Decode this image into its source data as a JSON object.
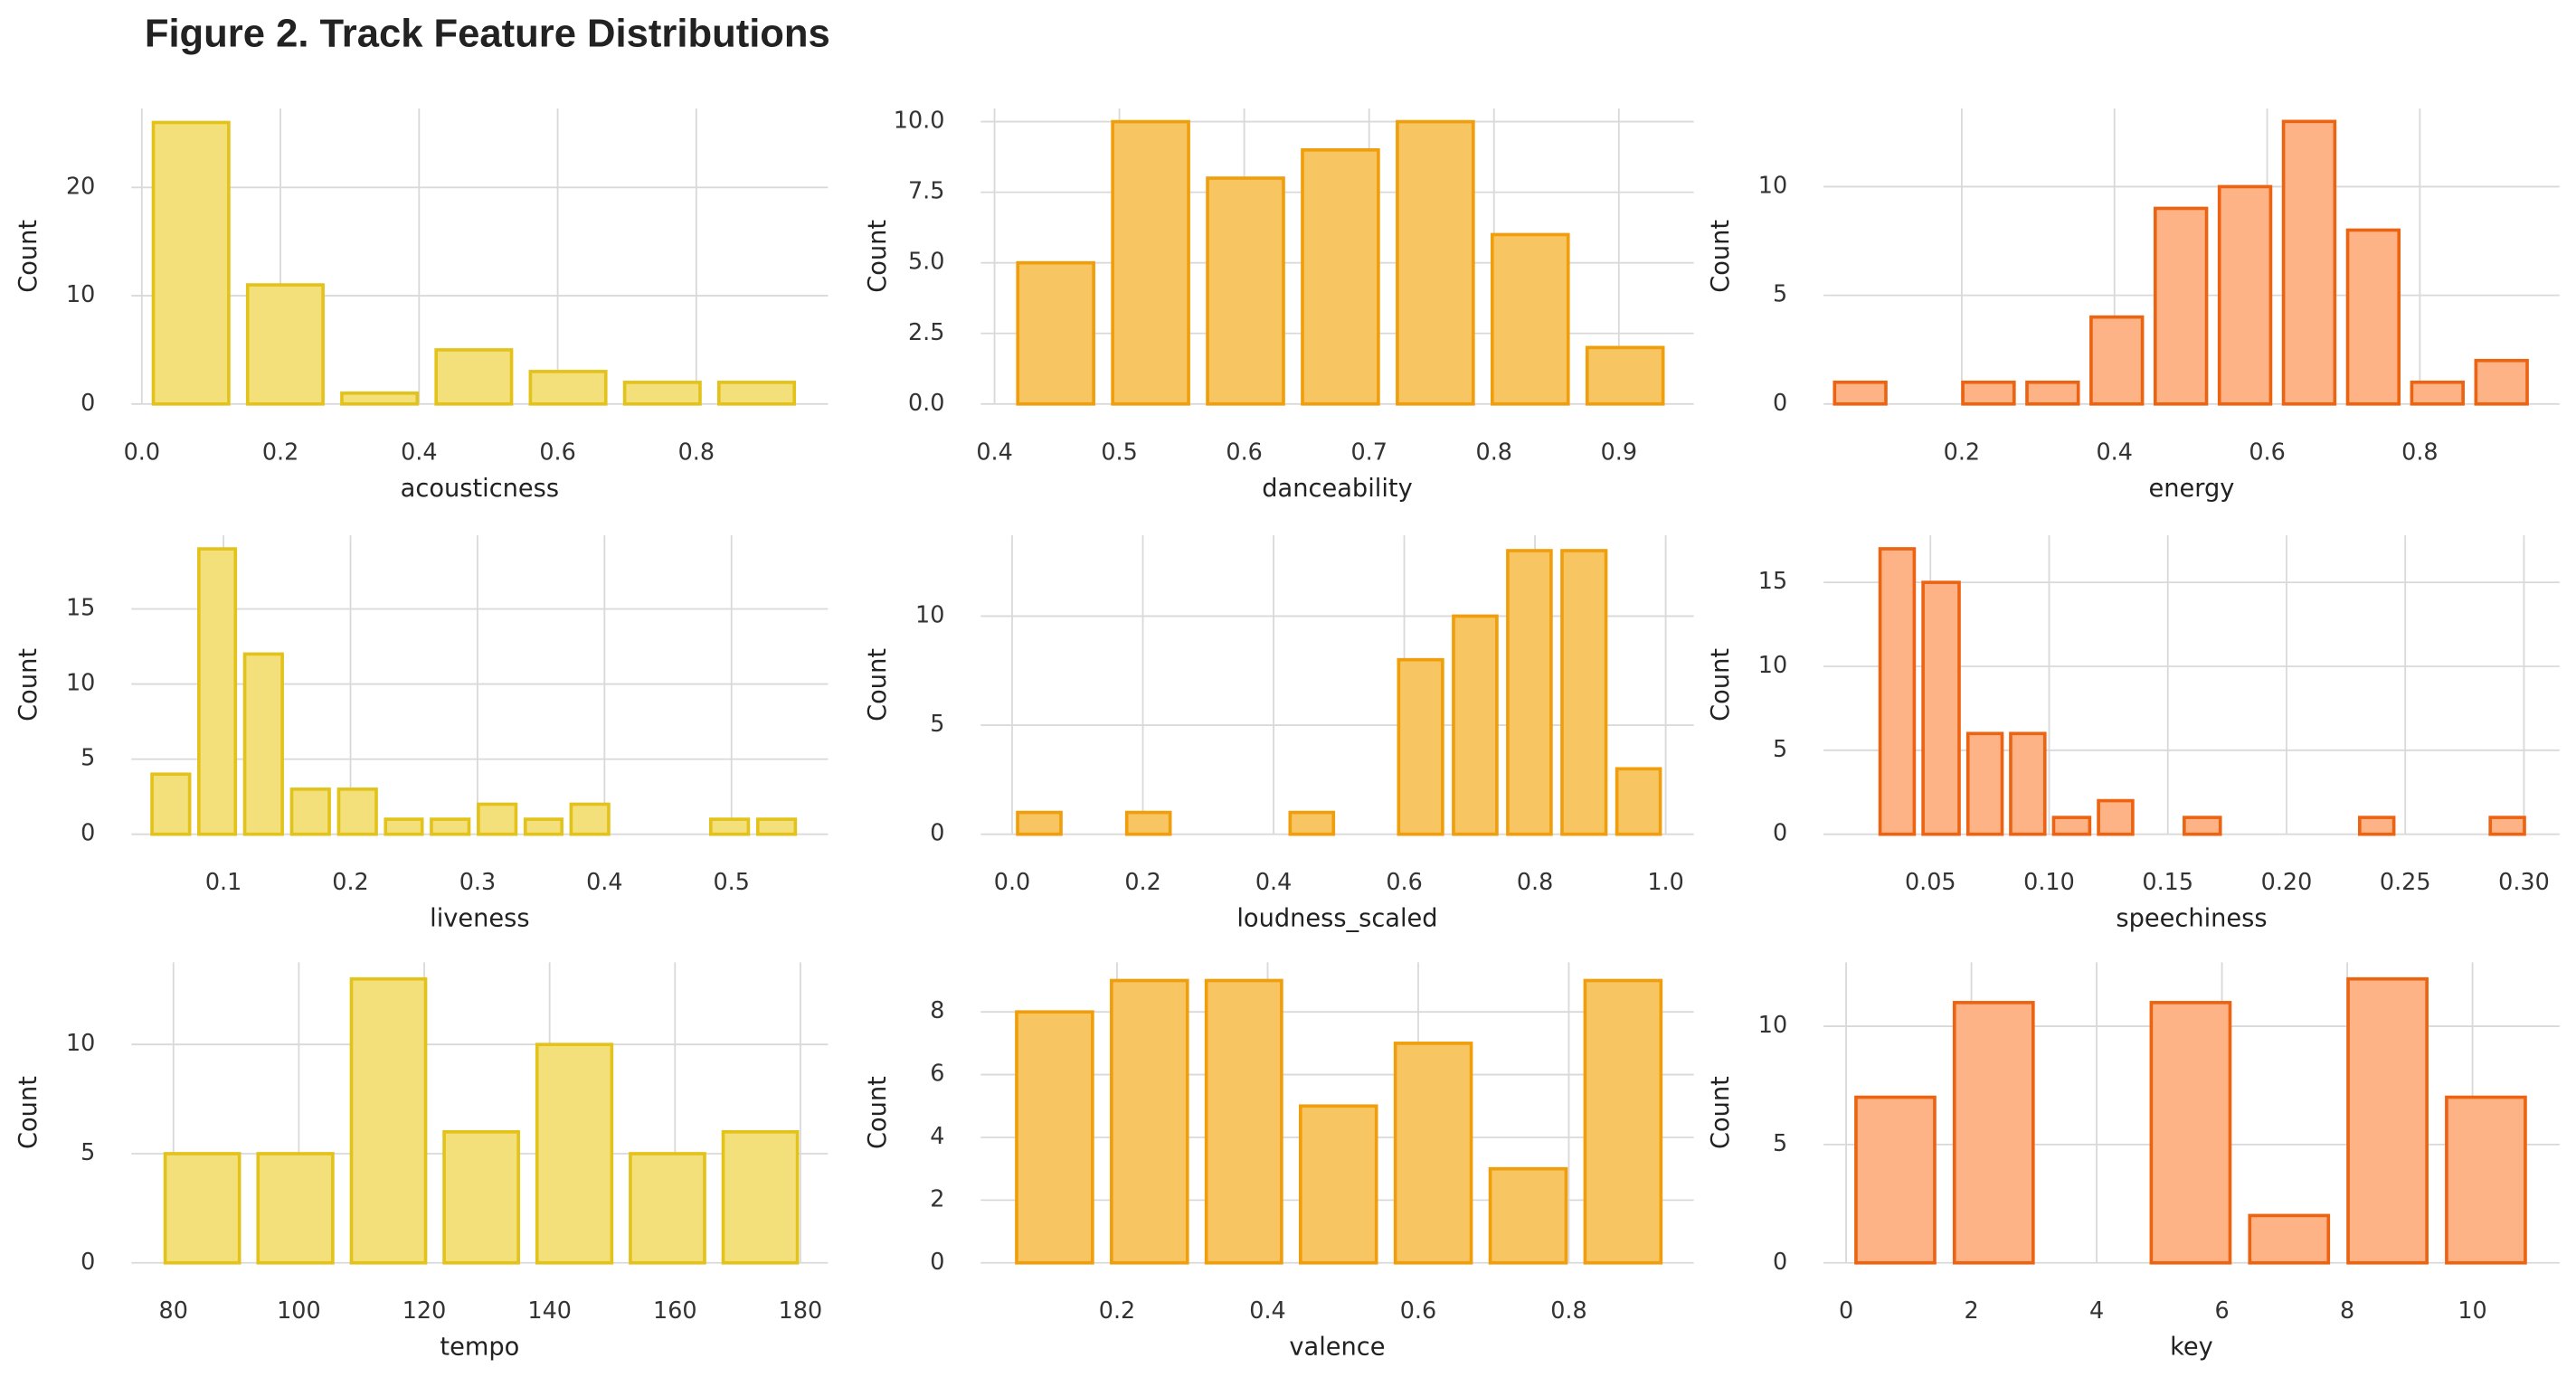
{
  "title": "Figure 2. Track Feature Distributions",
  "chart_data": [
    {
      "type": "histogram",
      "xlabel": "acousticness",
      "ylabel": "Count",
      "color": "#f3e07a",
      "edgecolor": "#e3c21a",
      "grid": true,
      "bins": [
        0.003,
        0.139,
        0.275,
        0.411,
        0.547,
        0.683,
        0.819,
        0.955
      ],
      "counts": [
        26,
        11,
        1,
        5,
        3,
        2,
        2
      ],
      "xlim": [
        -0.015,
        0.99
      ],
      "ylim": [
        0,
        27.3
      ],
      "xticks": [
        {
          "value": 0,
          "label": "0.0"
        },
        0.2,
        0.4,
        0.6,
        0.8
      ],
      "yticks": [
        0,
        10,
        20
      ]
    },
    {
      "type": "histogram",
      "xlabel": "danceability",
      "ylabel": "Count",
      "color": "#f7c562",
      "edgecolor": "#f09e0c",
      "grid": true,
      "bins": [
        0.411,
        0.487,
        0.563,
        0.639,
        0.715,
        0.791,
        0.867,
        0.943
      ],
      "counts": [
        5,
        10,
        8,
        9,
        10,
        6,
        2
      ],
      "xlim": [
        0.389,
        0.96
      ],
      "ylim": [
        0,
        10.47
      ],
      "xticks": [
        0.4,
        0.5,
        0.6,
        0.7,
        0.8,
        0.9
      ],
      "yticks": [
        {
          "value": 0,
          "label": "0.0"
        },
        2.5,
        {
          "value": 5,
          "label": "5.0"
        },
        7.5,
        {
          "value": 10,
          "label": "10.0"
        }
      ]
    },
    {
      "type": "histogram",
      "xlabel": "energy",
      "ylabel": "Count",
      "color": "#fdb385",
      "edgecolor": "#ec6312",
      "grid": true,
      "bins": [
        0.025,
        0.109,
        0.193,
        0.277,
        0.361,
        0.445,
        0.529,
        0.613,
        0.697,
        0.781,
        0.865,
        0.949
      ],
      "counts": [
        1,
        0,
        1,
        1,
        4,
        9,
        10,
        13,
        8,
        1,
        2
      ],
      "xlim": [
        0.019,
        0.983
      ],
      "ylim": [
        0,
        13.6
      ],
      "xticks": [
        0.2,
        0.4,
        0.6,
        0.8
      ],
      "yticks": [
        0,
        5,
        10
      ]
    },
    {
      "type": "histogram",
      "xlabel": "liveness",
      "ylabel": "Count",
      "color": "#f3e07a",
      "edgecolor": "#e3c21a",
      "grid": true,
      "bins": [
        0.04,
        0.077,
        0.113,
        0.15,
        0.187,
        0.224,
        0.26,
        0.297,
        0.334,
        0.37,
        0.407,
        0.444,
        0.48,
        0.517,
        0.554
      ],
      "counts": [
        4,
        19,
        12,
        3,
        3,
        1,
        1,
        2,
        1,
        2,
        0,
        0,
        1,
        1
      ],
      "xlim": [
        0.0275,
        0.576
      ],
      "ylim": [
        0,
        19.9
      ],
      "xticks": [
        0.1,
        0.2,
        0.3,
        0.4,
        0.5
      ],
      "yticks": [
        0,
        5,
        10,
        15
      ]
    },
    {
      "type": "histogram",
      "xlabel": "loudness_scaled",
      "ylabel": "Count",
      "color": "#f7c562",
      "edgecolor": "#f09e0c",
      "grid": true,
      "bins": [
        0,
        0.083,
        0.167,
        0.25,
        0.333,
        0.417,
        0.5,
        0.583,
        0.667,
        0.75,
        0.833,
        0.917,
        1.0
      ],
      "counts": [
        1,
        0,
        1,
        0,
        0,
        1,
        0,
        8,
        10,
        13,
        13,
        3
      ],
      "xlim": [
        -0.048,
        1.043
      ],
      "ylim": [
        0,
        13.7
      ],
      "xticks": [
        {
          "value": 0,
          "label": "0.0"
        },
        0.2,
        0.4,
        0.6,
        0.8,
        {
          "value": 1,
          "label": "1.0"
        }
      ],
      "yticks": [
        0,
        5,
        10
      ]
    },
    {
      "type": "histogram",
      "xlabel": "speechiness",
      "ylabel": "Count",
      "color": "#fdb385",
      "edgecolor": "#ec6312",
      "grid": true,
      "bins": [
        0.027,
        0.045,
        0.064,
        0.082,
        0.1,
        0.119,
        0.137,
        0.155,
        0.174,
        0.192,
        0.211,
        0.229,
        0.247,
        0.265,
        0.284,
        0.302
      ],
      "counts": [
        17,
        15,
        6,
        6,
        1,
        2,
        0,
        1,
        0,
        0,
        0,
        1,
        0,
        0,
        1
      ],
      "xlim": [
        0.005,
        0.315
      ],
      "ylim": [
        0,
        17.8
      ],
      "xticks": [
        0.05,
        {
          "value": 0.1,
          "label": "0.10"
        },
        0.15,
        {
          "value": 0.2,
          "label": "0.20"
        },
        0.25,
        {
          "value": 0.3,
          "label": "0.30"
        }
      ],
      "yticks": [
        0,
        5,
        10,
        15
      ]
    },
    {
      "type": "histogram",
      "xlabel": "tempo",
      "ylabel": "Count",
      "color": "#f3e07a",
      "edgecolor": "#e3c21a",
      "grid": true,
      "bins": [
        77.2,
        92.0,
        106.9,
        121.7,
        136.5,
        151.4,
        166.2,
        181.0
      ],
      "counts": [
        5,
        5,
        13,
        6,
        10,
        5,
        6
      ],
      "xlim": [
        73.3,
        184.4
      ],
      "ylim": [
        0,
        13.76
      ],
      "xticks": [
        80,
        100,
        120,
        140,
        160,
        180
      ],
      "yticks": [
        0,
        5,
        10
      ]
    },
    {
      "type": "histogram",
      "xlabel": "valence",
      "ylabel": "Count",
      "color": "#f7c562",
      "edgecolor": "#f09e0c",
      "grid": true,
      "bins": [
        0.054,
        0.18,
        0.306,
        0.431,
        0.557,
        0.683,
        0.809,
        0.935
      ],
      "counts": [
        8,
        9,
        9,
        5,
        7,
        3,
        9
      ],
      "xlim": [
        0.019,
        0.966
      ],
      "ylim": [
        0,
        9.58
      ],
      "xticks": [
        0.2,
        0.4,
        0.6,
        0.8
      ],
      "yticks": [
        0,
        2,
        4,
        6,
        8
      ]
    },
    {
      "type": "histogram",
      "xlabel": "key",
      "ylabel": "Count",
      "color": "#fdb385",
      "edgecolor": "#ec6312",
      "grid": true,
      "bins": [
        0,
        1.571,
        3.143,
        4.714,
        6.286,
        7.857,
        9.429,
        11
      ],
      "counts": [
        7,
        11,
        0,
        11,
        2,
        12,
        7
      ],
      "xlim": [
        -0.36,
        11.39
      ],
      "ylim": [
        0,
        12.7
      ],
      "xticks": [
        0,
        2,
        4,
        6,
        8,
        10
      ],
      "yticks": [
        0,
        5,
        10
      ]
    }
  ]
}
